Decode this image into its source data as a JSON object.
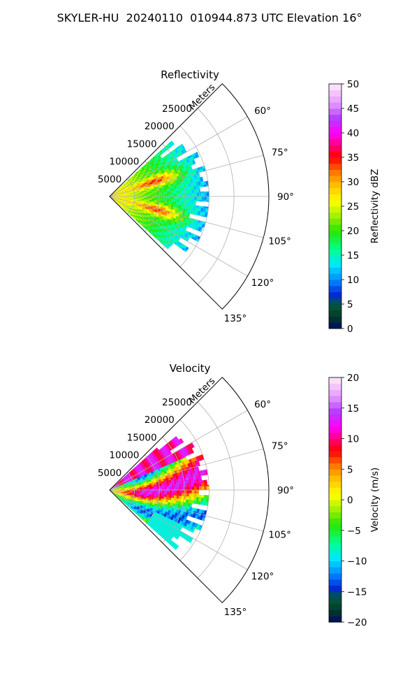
{
  "title": "SKYLER-HU  20240110  010944.873 UTC Elevation 16°",
  "chart_data": [
    {
      "type": "heatmap",
      "title": "Reflectivity",
      "radial_axis": {
        "label": "Meters",
        "ticks": [
          "5000",
          "10000",
          "15000",
          "20000",
          "25000"
        ],
        "range": [
          0,
          32000
        ]
      },
      "angular_axis": {
        "ticks": [
          "60°",
          "75°",
          "90°",
          "105°",
          "120°",
          "135°"
        ],
        "range_deg": [
          45,
          135
        ]
      },
      "colorbar": {
        "label": "Reflectivity dBZ",
        "range": [
          0,
          50
        ],
        "ticks": [
          "0",
          "5",
          "10",
          "15",
          "20",
          "25",
          "30",
          "35",
          "40",
          "45",
          "50"
        ]
      },
      "grid": true,
      "field_extent_m": 20000,
      "features": [
        {
          "azimuth_deg": 72,
          "range_m": 10000,
          "value": 38
        },
        {
          "azimuth_deg": 106,
          "range_m": 10500,
          "value": 38
        }
      ],
      "colors": {
        "low": "#000a60",
        "mid_low": "#00ffe0",
        "mid": "#40e000",
        "mid_high": "#ffee00",
        "high": "#ff0000",
        "top": "#ffe0ff"
      }
    },
    {
      "type": "heatmap",
      "title": "Velocity",
      "radial_axis": {
        "label": "Meters",
        "ticks": [
          "5000",
          "10000",
          "15000",
          "20000",
          "25000"
        ],
        "range": [
          0,
          32000
        ]
      },
      "angular_axis": {
        "ticks": [
          "60°",
          "75°",
          "90°",
          "105°",
          "120°",
          "135°"
        ],
        "range_deg": [
          45,
          135
        ]
      },
      "colorbar": {
        "label": "Velocity (m/s)",
        "range": [
          -20,
          20
        ],
        "ticks": [
          "−20",
          "−15",
          "−10",
          "−5",
          "0",
          "5",
          "10",
          "15",
          "20"
        ]
      },
      "grid": true,
      "field_extent_m": 20000,
      "colors": {
        "low": "#000a60",
        "mid_low": "#00ffe0",
        "mid": "#40e000",
        "mid_high": "#ffee00",
        "high": "#ff0000",
        "top": "#ffe0ff"
      }
    }
  ]
}
